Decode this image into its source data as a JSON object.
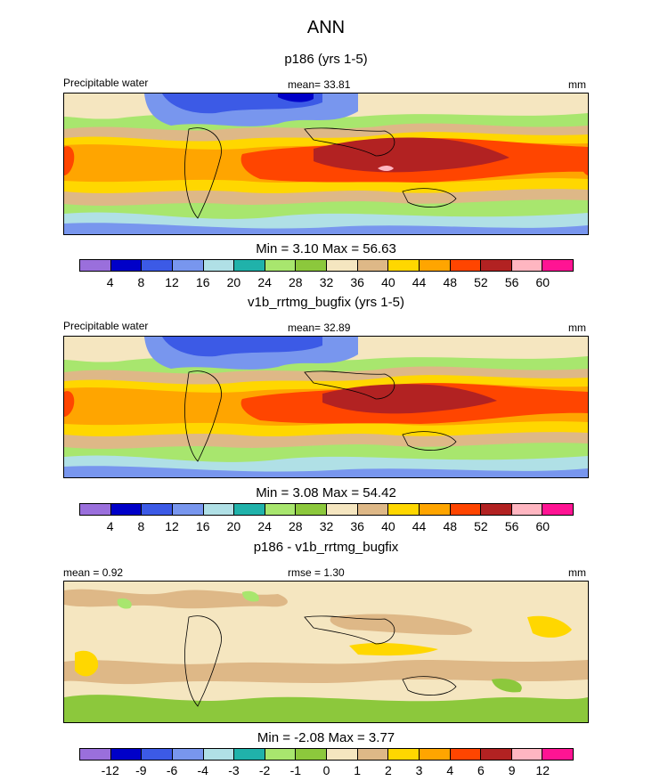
{
  "header": {
    "title": "ANN"
  },
  "chart_data": [
    {
      "type": "heatmap",
      "title": "p186 (yrs 1-5)",
      "left_label": "Precipitable water",
      "center_label": "mean=  33.81",
      "right_label": "mm",
      "min_max": "Min =   3.10 Max =  56.63",
      "min": 3.1,
      "max": 56.63,
      "mean": 33.81,
      "levels": [
        "4",
        "8",
        "12",
        "16",
        "20",
        "24",
        "28",
        "32",
        "36",
        "40",
        "44",
        "48",
        "52",
        "56",
        "60"
      ],
      "colors": [
        "#9a6fdc",
        "#0000c8",
        "#3c5ae6",
        "#7896ee",
        "#b0e0e6",
        "#20b2aa",
        "#a8e66e",
        "#8cc83c",
        "#f5e6c0",
        "#deb887",
        "#ffd700",
        "#ffa500",
        "#ff4500",
        "#b22222",
        "#ffb6c1",
        "#ff1493"
      ]
    },
    {
      "type": "heatmap",
      "title": "v1b_rrtmg_bugfix (yrs 1-5)",
      "left_label": "Precipitable water",
      "center_label": "mean=  32.89",
      "right_label": "mm",
      "min_max": "Min =   3.08 Max =  54.42",
      "min": 3.08,
      "max": 54.42,
      "mean": 32.89,
      "levels": [
        "4",
        "8",
        "12",
        "16",
        "20",
        "24",
        "28",
        "32",
        "36",
        "40",
        "44",
        "48",
        "52",
        "56",
        "60"
      ],
      "colors": [
        "#9a6fdc",
        "#0000c8",
        "#3c5ae6",
        "#7896ee",
        "#b0e0e6",
        "#20b2aa",
        "#a8e66e",
        "#8cc83c",
        "#f5e6c0",
        "#deb887",
        "#ffd700",
        "#ffa500",
        "#ff4500",
        "#b22222",
        "#ffb6c1",
        "#ff1493"
      ]
    },
    {
      "type": "heatmap",
      "title": "p186 - v1b_rrtmg_bugfix",
      "left_label": "mean =   0.92",
      "center_label": "rmse =   1.30",
      "right_label": "mm",
      "min_max": "Min =  -2.08 Max =   3.77",
      "min": -2.08,
      "max": 3.77,
      "mean": 0.92,
      "rmse": 1.3,
      "levels": [
        "-12",
        "-9",
        "-6",
        "-4",
        "-3",
        "-2",
        "-1",
        "0",
        "1",
        "2",
        "3",
        "4",
        "6",
        "9",
        "12"
      ],
      "colors": [
        "#9a6fdc",
        "#0000c8",
        "#3c5ae6",
        "#7896ee",
        "#b0e0e6",
        "#20b2aa",
        "#a8e66e",
        "#8cc83c",
        "#f5e6c0",
        "#deb887",
        "#ffd700",
        "#ffa500",
        "#ff4500",
        "#b22222",
        "#ffb6c1",
        "#ff1493"
      ]
    }
  ]
}
